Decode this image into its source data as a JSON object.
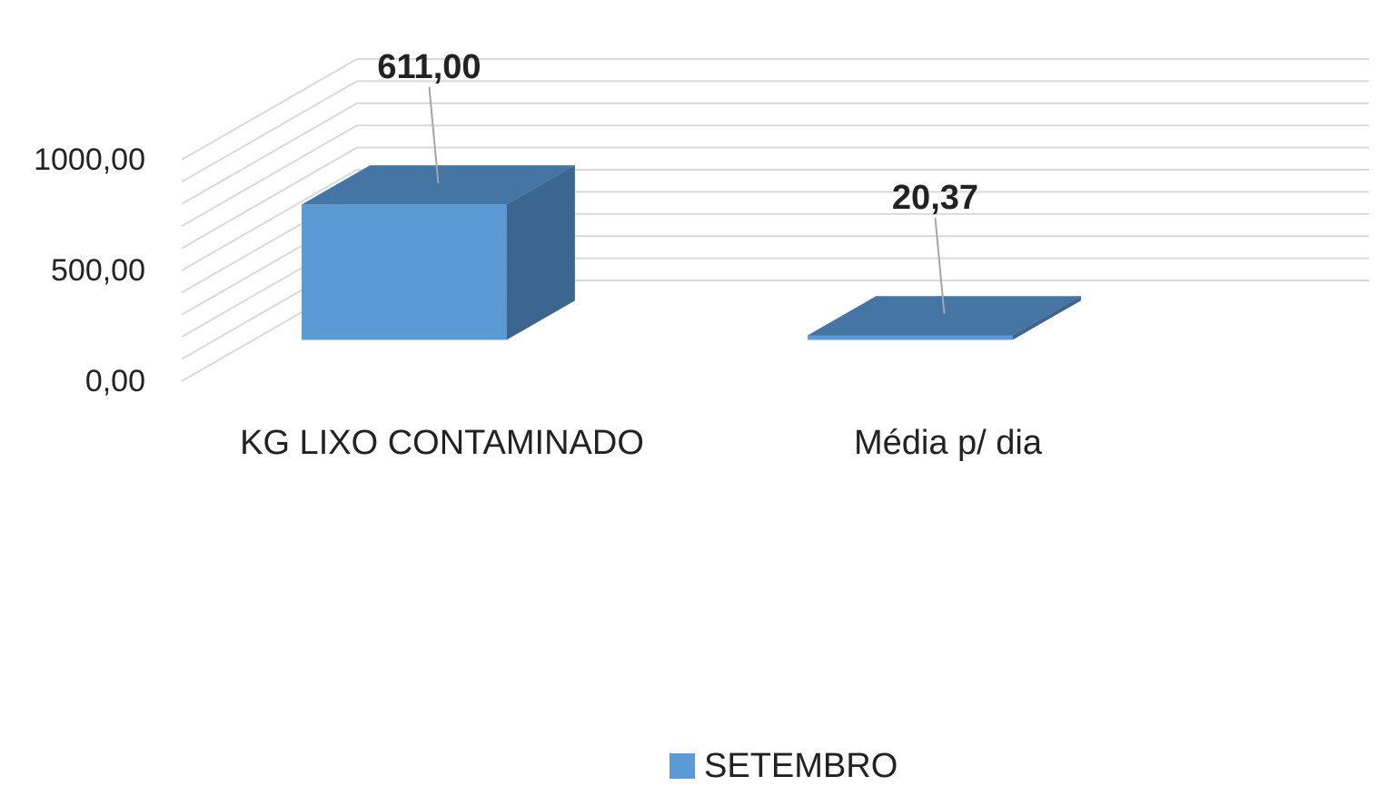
{
  "chart_data": {
    "type": "bar3d",
    "categories": [
      "KG LIXO CONTAMINADO",
      "Média p/ dia"
    ],
    "series": [
      {
        "name": "SETEMBRO",
        "color": "#5b9bd5",
        "values": [
          611,
          20.37
        ],
        "value_labels": [
          "611,00",
          "20,37"
        ]
      }
    ],
    "ylim": [
      0,
      1000
    ],
    "yticks": [
      {
        "value": 0,
        "label": "0,00"
      },
      {
        "value": 500,
        "label": "500,00"
      },
      {
        "value": 1000,
        "label": "1000,00"
      }
    ],
    "grid_yticks": [
      0,
      100,
      200,
      300,
      400,
      500,
      600,
      700,
      800,
      900,
      1000
    ],
    "grid": true,
    "legend": "bottom"
  }
}
